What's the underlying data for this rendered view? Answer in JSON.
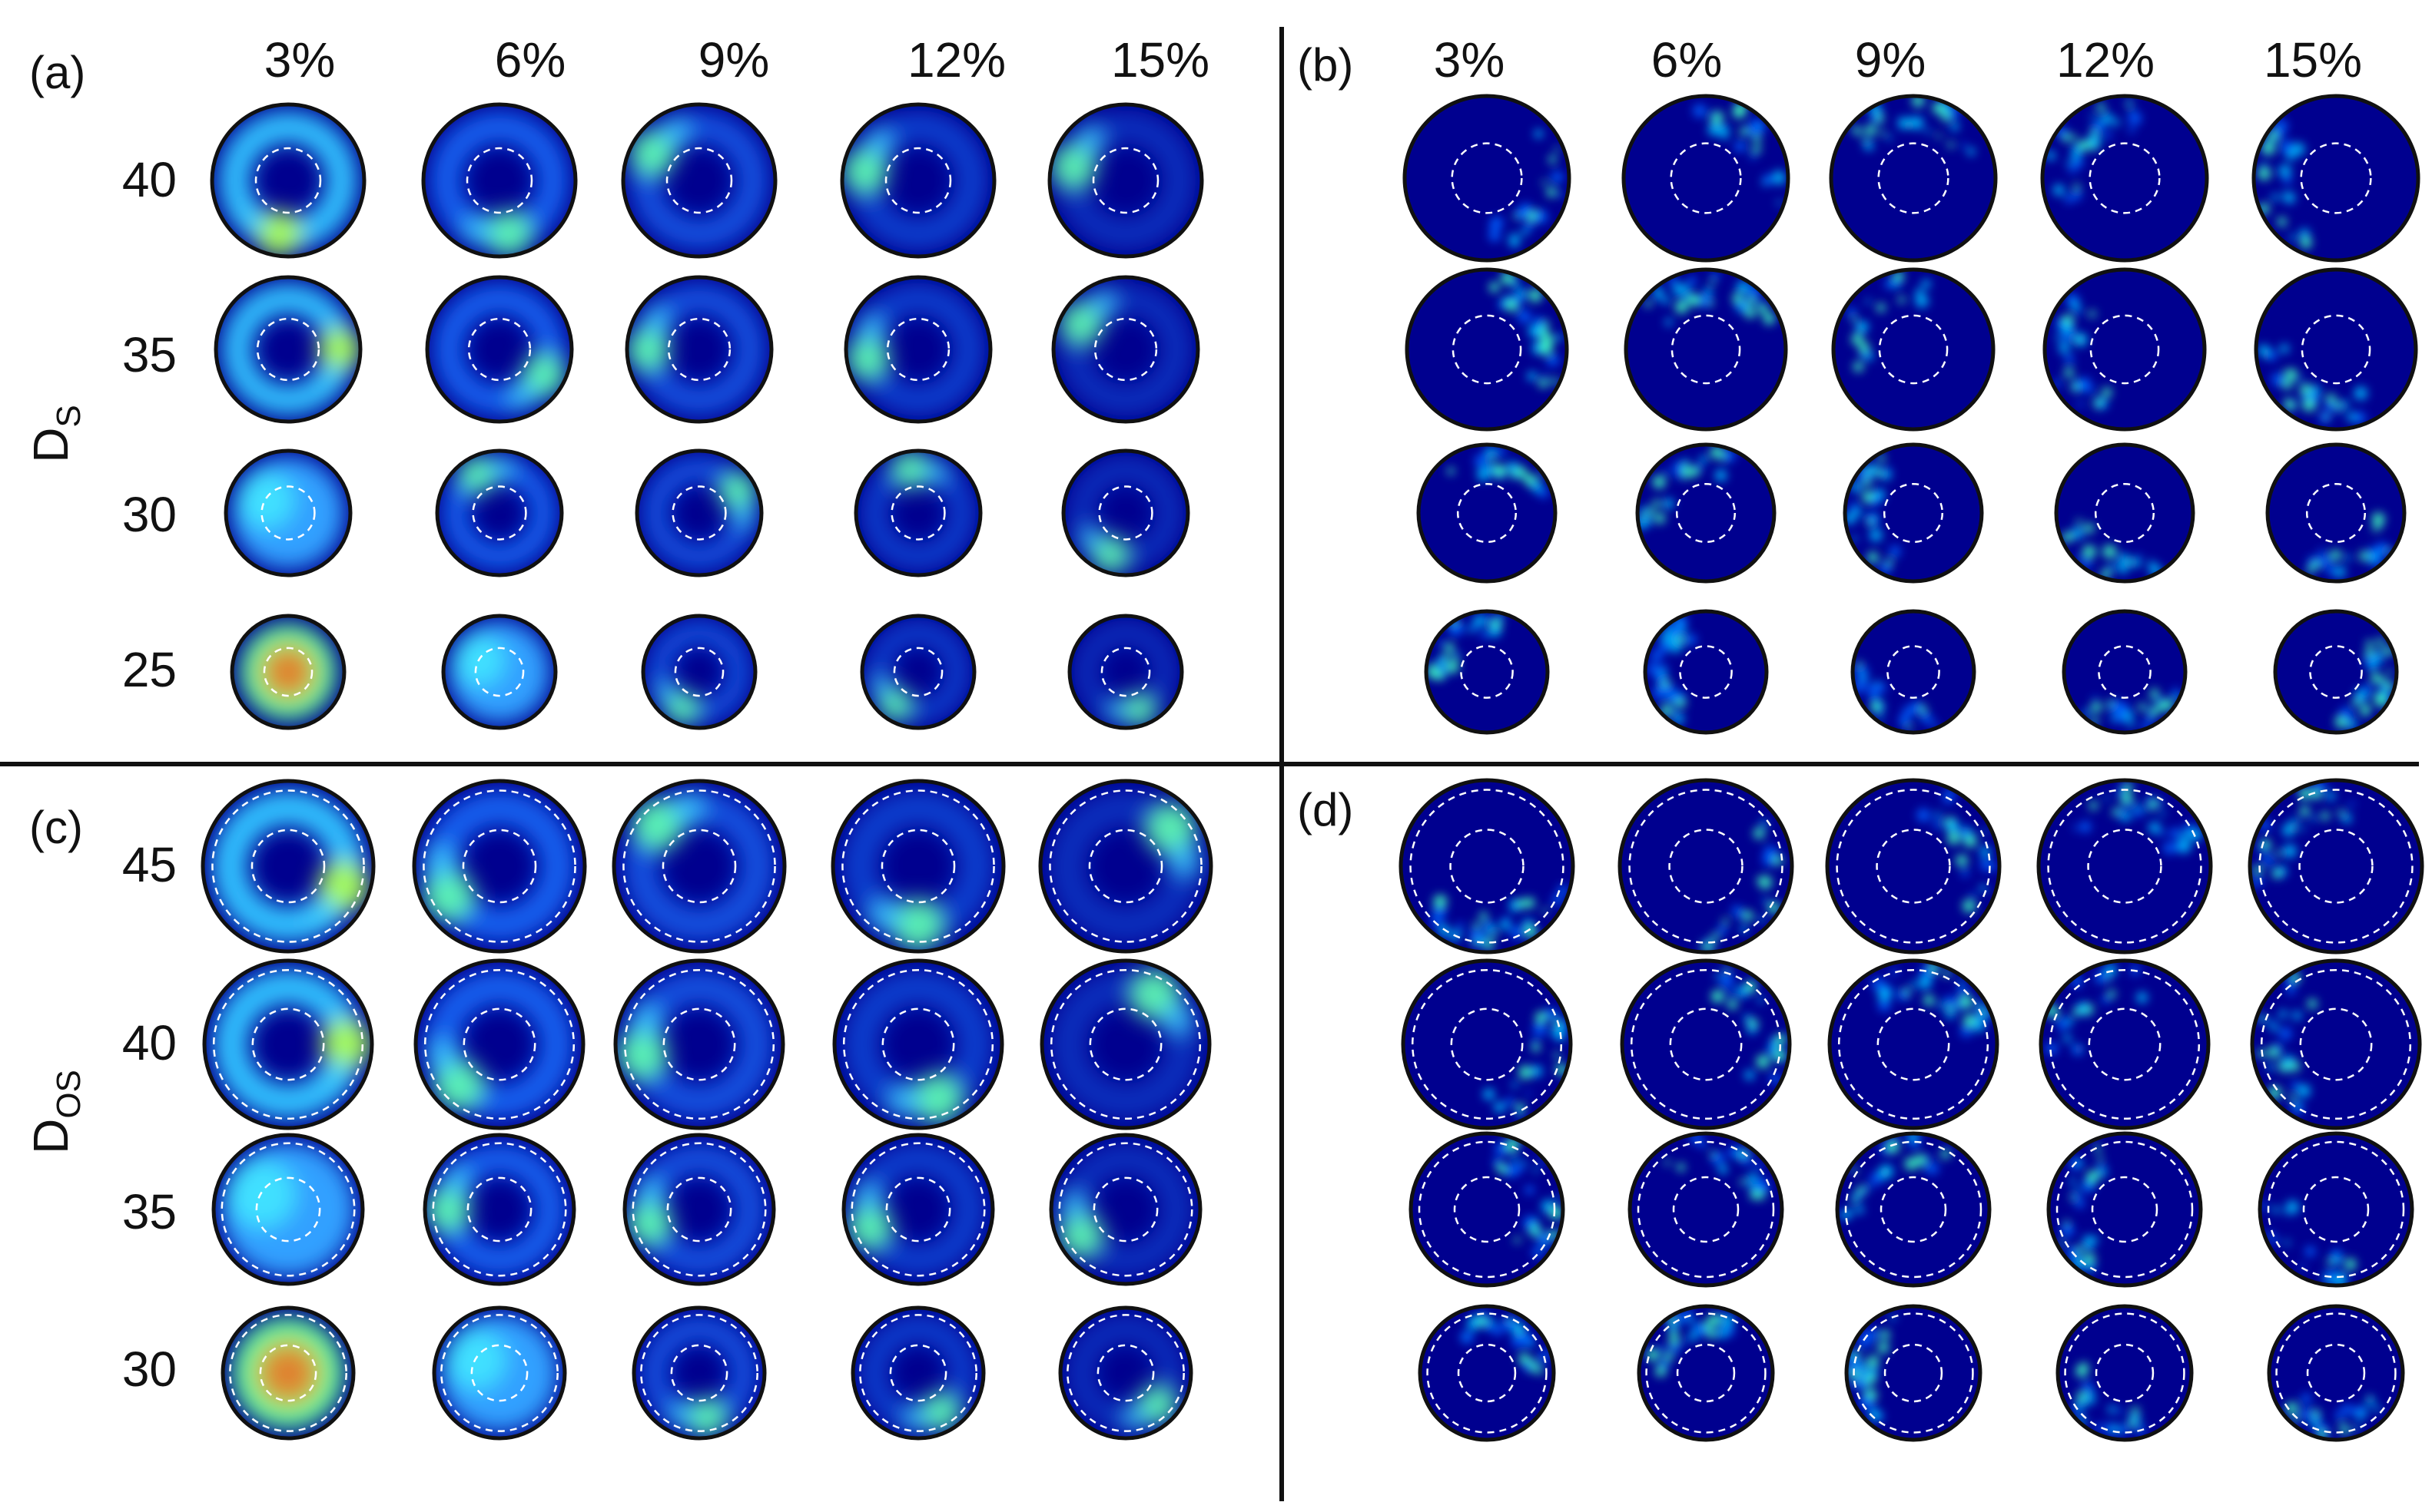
{
  "figure": {
    "columns": [
      "3%",
      "6%",
      "9%",
      "12%",
      "15%"
    ],
    "panels": [
      {
        "id": "a",
        "label": "(a)",
        "axis_label": "D",
        "axis_subscript": "S",
        "show_column_headers": true,
        "show_row_labels": true,
        "rows": [
          "40",
          "35",
          "30",
          "25"
        ],
        "map_type": "mean",
        "dashed_rings": 1
      },
      {
        "id": "b",
        "label": "(b)",
        "show_column_headers": true,
        "show_row_labels": false,
        "rows": [
          "40",
          "35",
          "30",
          "25"
        ],
        "map_type": "variation",
        "dashed_rings": 1
      },
      {
        "id": "c",
        "label": "(c)",
        "axis_label": "D",
        "axis_subscript": "OS",
        "show_column_headers": false,
        "show_row_labels": true,
        "rows": [
          "45",
          "40",
          "35",
          "30"
        ],
        "map_type": "mean",
        "dashed_rings": 2
      },
      {
        "id": "d",
        "label": "(d)",
        "show_column_headers": false,
        "show_row_labels": false,
        "rows": [
          "45",
          "40",
          "35",
          "30"
        ],
        "map_type": "variation",
        "dashed_rings": 2
      }
    ],
    "colors": {
      "background_map": "#00008f",
      "outline": "#111111",
      "dashed_ring": "#ffffff",
      "divider": "#111111",
      "colormap": "jet"
    }
  }
}
